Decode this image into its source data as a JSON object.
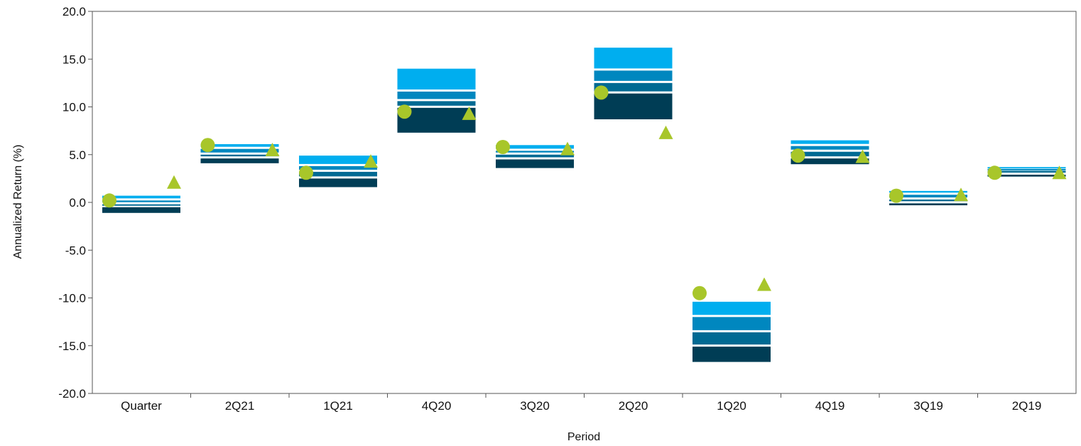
{
  "chart_data": {
    "type": "floating-bar-quartile",
    "xlabel": "Period",
    "ylabel": "Annualized Return (%)",
    "ylim": [
      -20,
      20
    ],
    "y_ticks": [
      "20.0",
      "15.0",
      "10.0",
      "5.0",
      "0.0",
      "-5.0",
      "-10.0",
      "-15.0",
      "-20.0"
    ],
    "grid": false,
    "categories": [
      "Quarter",
      "2Q21",
      "1Q21",
      "4Q20",
      "3Q20",
      "2Q20",
      "1Q20",
      "4Q19",
      "3Q19",
      "2Q19"
    ],
    "band_colors": [
      "#00aeef",
      "#0087bf",
      "#006a93",
      "#003d55"
    ],
    "bands": [
      [
        0.7,
        0.2,
        -0.2,
        -0.5,
        -1.1
      ],
      [
        6.1,
        5.6,
        5.0,
        4.6,
        4.1
      ],
      [
        4.9,
        3.8,
        3.2,
        2.5,
        1.6
      ],
      [
        14.0,
        11.6,
        10.6,
        9.9,
        7.3
      ],
      [
        6.0,
        5.4,
        5.0,
        4.5,
        3.6
      ],
      [
        16.2,
        13.8,
        12.5,
        11.4,
        8.7
      ],
      [
        -10.4,
        -12.0,
        -13.6,
        -15.1,
        -16.7
      ],
      [
        6.5,
        5.9,
        5.3,
        4.6,
        4.0
      ],
      [
        1.2,
        0.8,
        0.3,
        -0.1,
        -0.3
      ],
      [
        3.7,
        3.5,
        3.3,
        2.9,
        2.7
      ]
    ],
    "circle_marker": [
      0.2,
      6.0,
      3.1,
      9.5,
      5.8,
      11.5,
      -9.5,
      4.9,
      0.7,
      3.1
    ],
    "triangle_marker": [
      2.1,
      5.5,
      4.3,
      9.3,
      5.6,
      7.3,
      -8.6,
      4.8,
      0.8,
      3.1
    ],
    "marker_color": "#a8c62a"
  }
}
